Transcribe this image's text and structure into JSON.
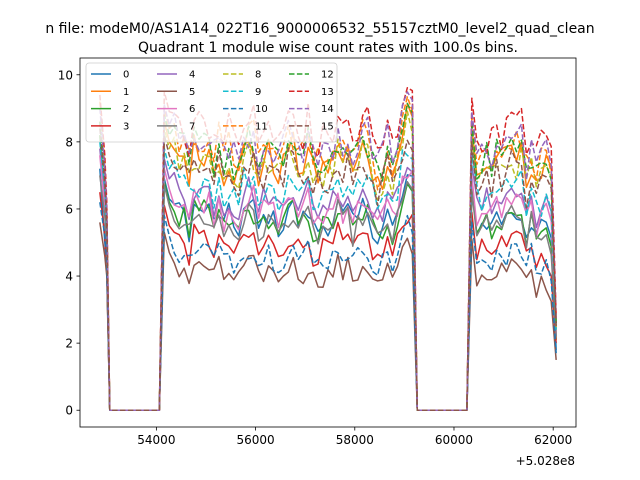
{
  "chart_data": {
    "type": "line",
    "suptitle": "n file: modeM0/AS1A14_022T16_9000006532_55157cztM0_level2_quad_clean",
    "title": "Quadrant 1 module wise count rates with 100.0s bins.",
    "xlabel": "",
    "ylabel": "",
    "offset_label": "+5.028e8",
    "offset": 502800000,
    "xlim": [
      52460,
      62460
    ],
    "ylim": [
      -0.5,
      10.5
    ],
    "xticks": [
      54000,
      56000,
      58000,
      60000,
      62000
    ],
    "yticks": [
      0,
      2,
      4,
      6,
      8,
      10
    ],
    "xtick_labels": [
      "54000",
      "56000",
      "58000",
      "60000",
      "62000"
    ],
    "ytick_labels": [
      "0",
      "2",
      "4",
      "6",
      "8",
      "10"
    ],
    "grid": false,
    "legend_position": "top-left",
    "legend_columns": 4,
    "segments": [
      {
        "start": 52860,
        "end": 53060,
        "kind": "decay"
      },
      {
        "start": 53060,
        "end": 54060,
        "kind": "zero"
      },
      {
        "start": 54060,
        "end": 59260,
        "kind": "active"
      },
      {
        "start": 59260,
        "end": 60260,
        "kind": "zero"
      },
      {
        "start": 60260,
        "end": 62060,
        "kind": "active"
      }
    ],
    "series": [
      {
        "name": "0",
        "color": "#1f77b4",
        "dash": "solid",
        "level": 5.7,
        "end_value": 1.8,
        "start": [
          7.2,
          5.0,
          4.2
        ]
      },
      {
        "name": "1",
        "color": "#ff7f0e",
        "dash": "solid",
        "level": 7.4,
        "end_value": 2.6,
        "start": [
          8.2,
          6.6,
          5.4
        ]
      },
      {
        "name": "2",
        "color": "#2ca02c",
        "dash": "solid",
        "level": 5.6,
        "end_value": 2.1,
        "start": [
          8.2,
          6.0,
          4.6
        ]
      },
      {
        "name": "3",
        "color": "#d62728",
        "dash": "solid",
        "level": 4.9,
        "end_value": 2.0,
        "start": [
          6.5,
          5.2,
          4.2
        ]
      },
      {
        "name": "4",
        "color": "#9467bd",
        "dash": "solid",
        "level": 6.3,
        "end_value": 2.2,
        "start": [
          7.8,
          6.2,
          5.0
        ]
      },
      {
        "name": "5",
        "color": "#8c564b",
        "dash": "solid",
        "level": 4.1,
        "end_value": 1.5,
        "start": [
          5.6,
          4.6,
          4.0
        ]
      },
      {
        "name": "6",
        "color": "#e377c2",
        "dash": "solid",
        "level": 6.0,
        "end_value": 2.3,
        "start": [
          7.6,
          6.0,
          4.8
        ]
      },
      {
        "name": "7",
        "color": "#7f7f7f",
        "dash": "solid",
        "level": 5.5,
        "end_value": 2.2,
        "start": [
          7.0,
          5.8,
          4.8
        ]
      },
      {
        "name": "8",
        "color": "#bcbd22",
        "dash": "dashed",
        "level": 7.2,
        "end_value": 2.4,
        "start": [
          8.6,
          7.0,
          5.6
        ]
      },
      {
        "name": "9",
        "color": "#17becf",
        "dash": "dashed",
        "level": 6.6,
        "end_value": 2.4,
        "start": [
          8.0,
          6.6,
          5.4
        ]
      },
      {
        "name": "10",
        "color": "#1f77b4",
        "dash": "dashed",
        "level": 4.6,
        "end_value": 1.7,
        "start": [
          6.2,
          5.2,
          4.4
        ]
      },
      {
        "name": "11",
        "color": "#ff7f0e",
        "dash": "dashed",
        "level": 7.8,
        "end_value": 2.6,
        "start": [
          9.2,
          7.4,
          6.0
        ]
      },
      {
        "name": "12",
        "color": "#2ca02c",
        "dash": "dashed",
        "level": 7.6,
        "end_value": 2.6,
        "start": [
          8.6,
          7.0,
          5.8
        ]
      },
      {
        "name": "13",
        "color": "#d62728",
        "dash": "dashed",
        "level": 8.3,
        "end_value": 2.8,
        "start": [
          9.4,
          7.6,
          6.2
        ]
      },
      {
        "name": "14",
        "color": "#9467bd",
        "dash": "dashed",
        "level": 7.9,
        "end_value": 2.7,
        "start": [
          9.0,
          7.2,
          6.0
        ]
      },
      {
        "name": "15",
        "color": "#8c564b",
        "dash": "dashed",
        "level": 7.0,
        "end_value": 2.5,
        "start": [
          8.4,
          6.8,
          5.4
        ]
      }
    ]
  }
}
